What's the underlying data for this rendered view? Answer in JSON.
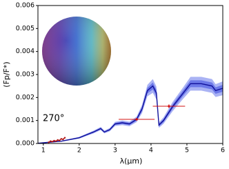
{
  "chart_data": {
    "type": "line",
    "xlabel": "λ(μm)",
    "ylabel": "(Fp/F*)",
    "annotation": "270°",
    "xlim": [
      0.85,
      6
    ],
    "xticks": [
      1,
      2,
      3,
      4,
      5,
      6
    ],
    "ylim": [
      0,
      0.006
    ],
    "yticks": [
      {
        "value": 0,
        "label": "0.000"
      },
      0.001,
      0.002,
      0.003,
      0.004,
      0.005,
      0.006
    ],
    "model": {
      "color": "#10109a",
      "band_colors": [
        "#aab3f4",
        "#6c78e8"
      ],
      "x": [
        0.85,
        1.0,
        1.5,
        2.0,
        2.4,
        2.6,
        2.7,
        2.85,
        3.0,
        3.2,
        3.4,
        3.6,
        3.75,
        3.9,
        4.05,
        4.15,
        4.22,
        4.35,
        4.6,
        4.9,
        5.1,
        5.4,
        5.7,
        5.8,
        6.0
      ],
      "values": [
        1e-05,
        3e-05,
        0.0001,
        0.00025,
        0.0005,
        0.00065,
        0.0005,
        0.0006,
        0.00085,
        0.0009,
        0.00085,
        0.00105,
        0.0015,
        0.0023,
        0.0025,
        0.0022,
        0.0008,
        0.001,
        0.0016,
        0.0022,
        0.0026,
        0.0026,
        0.0025,
        0.0023,
        0.0024
      ],
      "errors_outer": [
        1e-05,
        1e-05,
        2e-05,
        4e-05,
        6e-05,
        7e-05,
        6e-05,
        7e-05,
        9e-05,
        0.0001,
        0.0001,
        0.00012,
        0.00018,
        0.00025,
        0.0003,
        0.00028,
        0.00012,
        0.00014,
        0.0002,
        0.00025,
        0.0003,
        0.0003,
        0.0003,
        0.00028,
        0.0003
      ],
      "errors_inner": [
        5e-06,
        5e-06,
        1e-05,
        2e-05,
        3e-05,
        3.5e-05,
        3e-05,
        3.5e-05,
        4.5e-05,
        5e-05,
        5e-05,
        6e-05,
        9e-05,
        0.00012,
        0.00015,
        0.00014,
        6e-05,
        7e-05,
        0.0001,
        0.00012,
        0.00015,
        0.00015,
        0.00015,
        0.00014,
        0.00015
      ]
    },
    "observed": {
      "color": "#b01010",
      "x": [
        1.15,
        1.2,
        1.25,
        1.3,
        1.35,
        1.4,
        1.45,
        1.5,
        1.55,
        1.6
      ],
      "values": [
        5e-05,
        0.0001,
        8e-05,
        0.00012,
        0.0001,
        0.00015,
        0.00013,
        0.0002,
        0.00018,
        0.00025
      ]
    },
    "photometry": {
      "color": "#d01010",
      "x": [
        3.6,
        4.5
      ],
      "xerr": [
        0.5,
        0.45
      ],
      "values": [
        0.00105,
        0.00162
      ],
      "yerr": [
        6e-05,
        8e-05
      ]
    }
  }
}
